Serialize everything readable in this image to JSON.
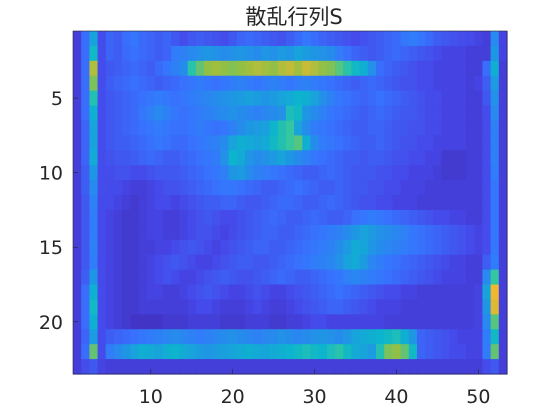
{
  "chart_data": {
    "type": "heatmap",
    "title": "散乱行列S",
    "xlabel": "",
    "ylabel": "",
    "cols": 53,
    "rows": 23,
    "x_ticks": [
      10,
      20,
      30,
      40,
      50
    ],
    "y_ticks": [
      5,
      10,
      15,
      20
    ],
    "xlim": [
      0.5,
      53.5
    ],
    "ylim": [
      0.5,
      23.5
    ],
    "y_direction": "reverse",
    "colormap": "parula",
    "clim": [
      0,
      1
    ],
    "values": [
      [
        0.1,
        0.25,
        0.45,
        0.15,
        0.22,
        0.2,
        0.25,
        0.28,
        0.24,
        0.22,
        0.2,
        0.22,
        0.18,
        0.15,
        0.18,
        0.2,
        0.18,
        0.16,
        0.15,
        0.18,
        0.22,
        0.24,
        0.22,
        0.2,
        0.18,
        0.16,
        0.2,
        0.24,
        0.28,
        0.25,
        0.22,
        0.2,
        0.18,
        0.16,
        0.14,
        0.16,
        0.18,
        0.2,
        0.22,
        0.24,
        0.28,
        0.3,
        0.28,
        0.24,
        0.2,
        0.18,
        0.16,
        0.15,
        0.14,
        0.12,
        0.1,
        0.35,
        0.12
      ],
      [
        0.1,
        0.25,
        0.55,
        0.15,
        0.22,
        0.2,
        0.24,
        0.26,
        0.24,
        0.22,
        0.2,
        0.22,
        0.3,
        0.32,
        0.35,
        0.38,
        0.4,
        0.38,
        0.36,
        0.38,
        0.4,
        0.38,
        0.36,
        0.4,
        0.38,
        0.42,
        0.4,
        0.45,
        0.42,
        0.4,
        0.38,
        0.36,
        0.3,
        0.26,
        0.22,
        0.2,
        0.18,
        0.2,
        0.22,
        0.24,
        0.22,
        0.2,
        0.18,
        0.16,
        0.14,
        0.12,
        0.12,
        0.12,
        0.1,
        0.1,
        0.1,
        0.4,
        0.12
      ],
      [
        0.1,
        0.25,
        0.82,
        0.15,
        0.18,
        0.2,
        0.22,
        0.24,
        0.22,
        0.2,
        0.24,
        0.28,
        0.32,
        0.36,
        0.62,
        0.72,
        0.78,
        0.8,
        0.78,
        0.76,
        0.78,
        0.8,
        0.82,
        0.8,
        0.78,
        0.82,
        0.84,
        0.8,
        0.85,
        0.82,
        0.78,
        0.76,
        0.7,
        0.62,
        0.55,
        0.5,
        0.38,
        0.25,
        0.22,
        0.2,
        0.18,
        0.16,
        0.14,
        0.14,
        0.12,
        0.12,
        0.12,
        0.12,
        0.1,
        0.1,
        0.25,
        0.5,
        0.1
      ],
      [
        0.1,
        0.25,
        0.75,
        0.15,
        0.2,
        0.22,
        0.24,
        0.26,
        0.24,
        0.22,
        0.2,
        0.22,
        0.24,
        0.26,
        0.28,
        0.3,
        0.28,
        0.26,
        0.28,
        0.3,
        0.32,
        0.3,
        0.28,
        0.3,
        0.32,
        0.3,
        0.28,
        0.3,
        0.32,
        0.3,
        0.28,
        0.26,
        0.24,
        0.22,
        0.2,
        0.22,
        0.24,
        0.22,
        0.2,
        0.18,
        0.16,
        0.16,
        0.14,
        0.14,
        0.12,
        0.12,
        0.12,
        0.12,
        0.1,
        0.12,
        0.2,
        0.42,
        0.1
      ],
      [
        0.1,
        0.25,
        0.6,
        0.15,
        0.18,
        0.2,
        0.22,
        0.24,
        0.26,
        0.28,
        0.3,
        0.28,
        0.26,
        0.28,
        0.3,
        0.32,
        0.34,
        0.36,
        0.38,
        0.4,
        0.42,
        0.44,
        0.42,
        0.4,
        0.42,
        0.45,
        0.48,
        0.52,
        0.5,
        0.45,
        0.38,
        0.32,
        0.28,
        0.26,
        0.24,
        0.22,
        0.24,
        0.26,
        0.24,
        0.22,
        0.2,
        0.18,
        0.16,
        0.14,
        0.14,
        0.12,
        0.12,
        0.12,
        0.1,
        0.1,
        0.18,
        0.38,
        0.1
      ],
      [
        0.1,
        0.25,
        0.5,
        0.15,
        0.18,
        0.2,
        0.22,
        0.24,
        0.28,
        0.32,
        0.35,
        0.32,
        0.28,
        0.26,
        0.28,
        0.3,
        0.32,
        0.34,
        0.36,
        0.38,
        0.36,
        0.34,
        0.32,
        0.34,
        0.36,
        0.38,
        0.58,
        0.55,
        0.4,
        0.36,
        0.32,
        0.28,
        0.26,
        0.24,
        0.22,
        0.2,
        0.22,
        0.24,
        0.22,
        0.2,
        0.18,
        0.18,
        0.16,
        0.14,
        0.14,
        0.12,
        0.12,
        0.12,
        0.1,
        0.1,
        0.15,
        0.35,
        0.1
      ],
      [
        0.1,
        0.22,
        0.45,
        0.15,
        0.18,
        0.2,
        0.22,
        0.24,
        0.26,
        0.28,
        0.3,
        0.28,
        0.26,
        0.26,
        0.28,
        0.3,
        0.28,
        0.26,
        0.28,
        0.32,
        0.36,
        0.4,
        0.42,
        0.44,
        0.52,
        0.6,
        0.65,
        0.45,
        0.36,
        0.3,
        0.28,
        0.26,
        0.24,
        0.22,
        0.2,
        0.2,
        0.22,
        0.22,
        0.2,
        0.18,
        0.18,
        0.16,
        0.16,
        0.14,
        0.14,
        0.12,
        0.12,
        0.12,
        0.1,
        0.1,
        0.15,
        0.32,
        0.1
      ],
      [
        0.1,
        0.22,
        0.45,
        0.15,
        0.18,
        0.2,
        0.2,
        0.22,
        0.24,
        0.26,
        0.28,
        0.26,
        0.24,
        0.24,
        0.26,
        0.28,
        0.3,
        0.32,
        0.36,
        0.45,
        0.5,
        0.48,
        0.45,
        0.48,
        0.55,
        0.6,
        0.66,
        0.7,
        0.5,
        0.36,
        0.3,
        0.28,
        0.26,
        0.24,
        0.22,
        0.2,
        0.2,
        0.22,
        0.2,
        0.18,
        0.16,
        0.16,
        0.14,
        0.14,
        0.12,
        0.12,
        0.12,
        0.12,
        0.1,
        0.1,
        0.15,
        0.32,
        0.1
      ],
      [
        0.1,
        0.22,
        0.48,
        0.15,
        0.16,
        0.18,
        0.18,
        0.2,
        0.22,
        0.24,
        0.22,
        0.2,
        0.2,
        0.22,
        0.24,
        0.26,
        0.28,
        0.3,
        0.38,
        0.52,
        0.48,
        0.4,
        0.36,
        0.38,
        0.42,
        0.45,
        0.4,
        0.36,
        0.32,
        0.28,
        0.26,
        0.24,
        0.22,
        0.2,
        0.2,
        0.18,
        0.2,
        0.2,
        0.18,
        0.16,
        0.16,
        0.14,
        0.14,
        0.12,
        0.12,
        0.08,
        0.08,
        0.08,
        0.1,
        0.1,
        0.15,
        0.32,
        0.1
      ],
      [
        0.1,
        0.2,
        0.4,
        0.15,
        0.15,
        0.16,
        0.16,
        0.14,
        0.14,
        0.16,
        0.18,
        0.18,
        0.18,
        0.2,
        0.22,
        0.24,
        0.26,
        0.28,
        0.32,
        0.4,
        0.42,
        0.36,
        0.32,
        0.3,
        0.28,
        0.26,
        0.24,
        0.22,
        0.2,
        0.2,
        0.22,
        0.24,
        0.22,
        0.2,
        0.18,
        0.18,
        0.18,
        0.16,
        0.16,
        0.14,
        0.14,
        0.12,
        0.12,
        0.12,
        0.1,
        0.08,
        0.08,
        0.08,
        0.1,
        0.1,
        0.15,
        0.3,
        0.1
      ],
      [
        0.1,
        0.2,
        0.35,
        0.15,
        0.14,
        0.14,
        0.12,
        0.1,
        0.1,
        0.12,
        0.14,
        0.16,
        0.16,
        0.18,
        0.2,
        0.22,
        0.24,
        0.26,
        0.28,
        0.28,
        0.26,
        0.24,
        0.22,
        0.2,
        0.2,
        0.22,
        0.24,
        0.26,
        0.24,
        0.22,
        0.2,
        0.2,
        0.22,
        0.2,
        0.18,
        0.18,
        0.16,
        0.16,
        0.14,
        0.14,
        0.12,
        0.12,
        0.12,
        0.1,
        0.1,
        0.1,
        0.1,
        0.1,
        0.1,
        0.1,
        0.15,
        0.28,
        0.1
      ],
      [
        0.1,
        0.18,
        0.32,
        0.14,
        0.14,
        0.12,
        0.1,
        0.08,
        0.1,
        0.12,
        0.14,
        0.14,
        0.12,
        0.14,
        0.16,
        0.18,
        0.2,
        0.2,
        0.22,
        0.22,
        0.2,
        0.18,
        0.18,
        0.2,
        0.22,
        0.24,
        0.24,
        0.22,
        0.2,
        0.2,
        0.22,
        0.24,
        0.22,
        0.2,
        0.18,
        0.16,
        0.16,
        0.14,
        0.14,
        0.12,
        0.12,
        0.12,
        0.1,
        0.1,
        0.1,
        0.1,
        0.1,
        0.1,
        0.1,
        0.1,
        0.15,
        0.28,
        0.1
      ],
      [
        0.1,
        0.18,
        0.3,
        0.14,
        0.12,
        0.1,
        0.08,
        0.08,
        0.1,
        0.12,
        0.12,
        0.1,
        0.1,
        0.12,
        0.14,
        0.16,
        0.18,
        0.16,
        0.14,
        0.14,
        0.16,
        0.18,
        0.2,
        0.22,
        0.24,
        0.22,
        0.2,
        0.2,
        0.22,
        0.24,
        0.22,
        0.2,
        0.2,
        0.22,
        0.26,
        0.28,
        0.3,
        0.28,
        0.26,
        0.24,
        0.22,
        0.2,
        0.18,
        0.16,
        0.14,
        0.14,
        0.12,
        0.12,
        0.1,
        0.1,
        0.15,
        0.28,
        0.1
      ],
      [
        0.1,
        0.18,
        0.3,
        0.14,
        0.12,
        0.1,
        0.08,
        0.08,
        0.1,
        0.12,
        0.12,
        0.1,
        0.1,
        0.12,
        0.14,
        0.16,
        0.16,
        0.14,
        0.12,
        0.14,
        0.16,
        0.18,
        0.2,
        0.22,
        0.22,
        0.2,
        0.2,
        0.22,
        0.24,
        0.26,
        0.28,
        0.3,
        0.32,
        0.36,
        0.4,
        0.45,
        0.42,
        0.38,
        0.36,
        0.34,
        0.32,
        0.28,
        0.26,
        0.24,
        0.22,
        0.2,
        0.18,
        0.16,
        0.14,
        0.12,
        0.15,
        0.28,
        0.1
      ],
      [
        0.1,
        0.18,
        0.32,
        0.14,
        0.12,
        0.1,
        0.08,
        0.08,
        0.1,
        0.1,
        0.12,
        0.12,
        0.14,
        0.16,
        0.18,
        0.16,
        0.14,
        0.12,
        0.14,
        0.16,
        0.18,
        0.2,
        0.22,
        0.22,
        0.2,
        0.2,
        0.22,
        0.24,
        0.26,
        0.28,
        0.3,
        0.32,
        0.36,
        0.42,
        0.48,
        0.46,
        0.4,
        0.36,
        0.34,
        0.32,
        0.3,
        0.28,
        0.26,
        0.24,
        0.22,
        0.2,
        0.18,
        0.16,
        0.14,
        0.12,
        0.15,
        0.28,
        0.1
      ],
      [
        0.1,
        0.18,
        0.3,
        0.14,
        0.12,
        0.1,
        0.08,
        0.08,
        0.1,
        0.12,
        0.14,
        0.16,
        0.18,
        0.16,
        0.14,
        0.12,
        0.12,
        0.14,
        0.16,
        0.18,
        0.2,
        0.2,
        0.18,
        0.18,
        0.2,
        0.22,
        0.24,
        0.26,
        0.28,
        0.3,
        0.32,
        0.34,
        0.38,
        0.45,
        0.48,
        0.42,
        0.34,
        0.3,
        0.28,
        0.26,
        0.24,
        0.22,
        0.2,
        0.18,
        0.16,
        0.14,
        0.12,
        0.12,
        0.1,
        0.1,
        0.2,
        0.3,
        0.1
      ],
      [
        0.1,
        0.2,
        0.4,
        0.14,
        0.12,
        0.1,
        0.08,
        0.08,
        0.1,
        0.12,
        0.14,
        0.16,
        0.14,
        0.12,
        0.12,
        0.14,
        0.16,
        0.18,
        0.2,
        0.18,
        0.16,
        0.16,
        0.18,
        0.2,
        0.22,
        0.24,
        0.22,
        0.2,
        0.2,
        0.22,
        0.24,
        0.26,
        0.28,
        0.32,
        0.34,
        0.32,
        0.3,
        0.28,
        0.26,
        0.24,
        0.22,
        0.2,
        0.18,
        0.16,
        0.14,
        0.12,
        0.12,
        0.12,
        0.1,
        0.1,
        0.35,
        0.65,
        0.1
      ],
      [
        0.1,
        0.25,
        0.5,
        0.14,
        0.12,
        0.1,
        0.08,
        0.08,
        0.1,
        0.12,
        0.12,
        0.1,
        0.1,
        0.12,
        0.14,
        0.16,
        0.18,
        0.16,
        0.14,
        0.12,
        0.12,
        0.14,
        0.16,
        0.14,
        0.12,
        0.12,
        0.14,
        0.16,
        0.18,
        0.2,
        0.22,
        0.24,
        0.26,
        0.24,
        0.22,
        0.2,
        0.18,
        0.16,
        0.14,
        0.14,
        0.12,
        0.12,
        0.1,
        0.1,
        0.1,
        0.1,
        0.1,
        0.1,
        0.1,
        0.12,
        0.45,
        0.9,
        0.1
      ],
      [
        0.1,
        0.25,
        0.55,
        0.14,
        0.12,
        0.1,
        0.08,
        0.08,
        0.1,
        0.1,
        0.1,
        0.1,
        0.1,
        0.1,
        0.12,
        0.14,
        0.14,
        0.12,
        0.1,
        0.1,
        0.1,
        0.12,
        0.14,
        0.12,
        0.1,
        0.1,
        0.12,
        0.14,
        0.16,
        0.18,
        0.2,
        0.22,
        0.22,
        0.2,
        0.18,
        0.16,
        0.14,
        0.12,
        0.12,
        0.12,
        0.1,
        0.1,
        0.1,
        0.1,
        0.1,
        0.1,
        0.1,
        0.1,
        0.1,
        0.12,
        0.4,
        0.88,
        0.1
      ],
      [
        0.1,
        0.25,
        0.5,
        0.14,
        0.12,
        0.1,
        0.08,
        0.06,
        0.06,
        0.06,
        0.06,
        0.08,
        0.08,
        0.08,
        0.1,
        0.1,
        0.1,
        0.1,
        0.08,
        0.08,
        0.08,
        0.1,
        0.1,
        0.1,
        0.08,
        0.08,
        0.1,
        0.1,
        0.12,
        0.14,
        0.14,
        0.12,
        0.12,
        0.12,
        0.12,
        0.12,
        0.12,
        0.12,
        0.1,
        0.1,
        0.1,
        0.1,
        0.1,
        0.1,
        0.1,
        0.1,
        0.1,
        0.1,
        0.1,
        0.12,
        0.35,
        0.7,
        0.1
      ],
      [
        0.1,
        0.22,
        0.42,
        0.15,
        0.2,
        0.22,
        0.24,
        0.26,
        0.28,
        0.3,
        0.32,
        0.34,
        0.36,
        0.34,
        0.32,
        0.3,
        0.32,
        0.34,
        0.36,
        0.38,
        0.36,
        0.34,
        0.32,
        0.34,
        0.36,
        0.38,
        0.36,
        0.34,
        0.36,
        0.38,
        0.4,
        0.38,
        0.36,
        0.4,
        0.45,
        0.48,
        0.5,
        0.52,
        0.55,
        0.58,
        0.5,
        0.4,
        0.22,
        0.2,
        0.18,
        0.16,
        0.14,
        0.12,
        0.12,
        0.12,
        0.3,
        0.55,
        0.1
      ],
      [
        0.1,
        0.25,
        0.72,
        0.15,
        0.3,
        0.35,
        0.4,
        0.45,
        0.5,
        0.48,
        0.45,
        0.5,
        0.52,
        0.48,
        0.45,
        0.42,
        0.4,
        0.42,
        0.44,
        0.46,
        0.48,
        0.5,
        0.48,
        0.46,
        0.48,
        0.5,
        0.52,
        0.55,
        0.58,
        0.55,
        0.52,
        0.58,
        0.62,
        0.55,
        0.48,
        0.45,
        0.42,
        0.6,
        0.75,
        0.78,
        0.72,
        0.55,
        0.22,
        0.2,
        0.18,
        0.16,
        0.14,
        0.14,
        0.12,
        0.12,
        0.3,
        0.72,
        0.1
      ],
      [
        0.1,
        0.15,
        0.18,
        0.12,
        0.1,
        0.1,
        0.1,
        0.1,
        0.1,
        0.1,
        0.1,
        0.1,
        0.1,
        0.1,
        0.1,
        0.1,
        0.1,
        0.1,
        0.1,
        0.1,
        0.1,
        0.1,
        0.1,
        0.1,
        0.1,
        0.1,
        0.1,
        0.1,
        0.1,
        0.1,
        0.1,
        0.1,
        0.1,
        0.1,
        0.1,
        0.1,
        0.1,
        0.1,
        0.1,
        0.1,
        0.1,
        0.1,
        0.1,
        0.1,
        0.1,
        0.1,
        0.1,
        0.1,
        0.1,
        0.1,
        0.15,
        0.18,
        0.1
      ]
    ]
  }
}
